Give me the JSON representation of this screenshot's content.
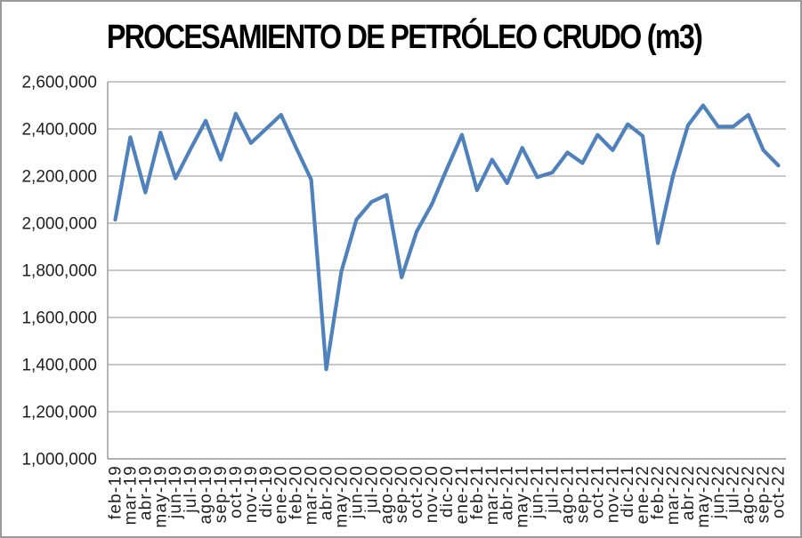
{
  "chart_data": {
    "type": "line",
    "title": "PROCESAMIENTO DE PETRÓLEO CRUDO (m3)",
    "xlabel": "",
    "ylabel": "",
    "categories": [
      "feb-19",
      "mar-19",
      "abr-19",
      "may-19",
      "jun-19",
      "jul-19",
      "ago-19",
      "sep-19",
      "oct-19",
      "nov-19",
      "dic-19",
      "ene-20",
      "feb-20",
      "mar-20",
      "abr-20",
      "may-20",
      "jun-20",
      "jul-20",
      "ago-20",
      "sep-20",
      "oct-20",
      "nov-20",
      "dic-20",
      "ene-21",
      "feb-21",
      "mar-21",
      "abr-21",
      "may-21",
      "jun-21",
      "jul-21",
      "ago-21",
      "sep-21",
      "oct-21",
      "nov-21",
      "dic-21",
      "ene-22",
      "feb-22",
      "mar-22",
      "abr-22",
      "may-22",
      "jun-22",
      "jul-22",
      "ago-22",
      "sep-22",
      "oct-22"
    ],
    "values": [
      2015000,
      2365000,
      2130000,
      2385000,
      2190000,
      2315000,
      2435000,
      2270000,
      2465000,
      2340000,
      2400000,
      2460000,
      2320000,
      2185000,
      1380000,
      1795000,
      2015000,
      2090000,
      2120000,
      1770000,
      1965000,
      2080000,
      2230000,
      2375000,
      2140000,
      2270000,
      2170000,
      2320000,
      2195000,
      2215000,
      2300000,
      2255000,
      2375000,
      2310000,
      2420000,
      2370000,
      1915000,
      2200000,
      2415000,
      2500000,
      2410000,
      2410000,
      2460000,
      2310000,
      2245000
    ],
    "ylim": [
      1000000,
      2600000
    ],
    "ytick_step": 200000,
    "y_tick_labels": [
      "1,000,000",
      "1,200,000",
      "1,400,000",
      "1,600,000",
      "1,800,000",
      "2,000,000",
      "2,200,000",
      "2,400,000",
      "2,600,000"
    ],
    "grid": true,
    "legend": "none",
    "colors": {
      "line": "#4F81BD",
      "gridline": "#A6A6A6",
      "axis": "#8E8E8E",
      "tick_text": "#1f1f1f",
      "title_text": "#000000",
      "frame_border": "#9a9a9a",
      "background": "#ffffff"
    }
  }
}
